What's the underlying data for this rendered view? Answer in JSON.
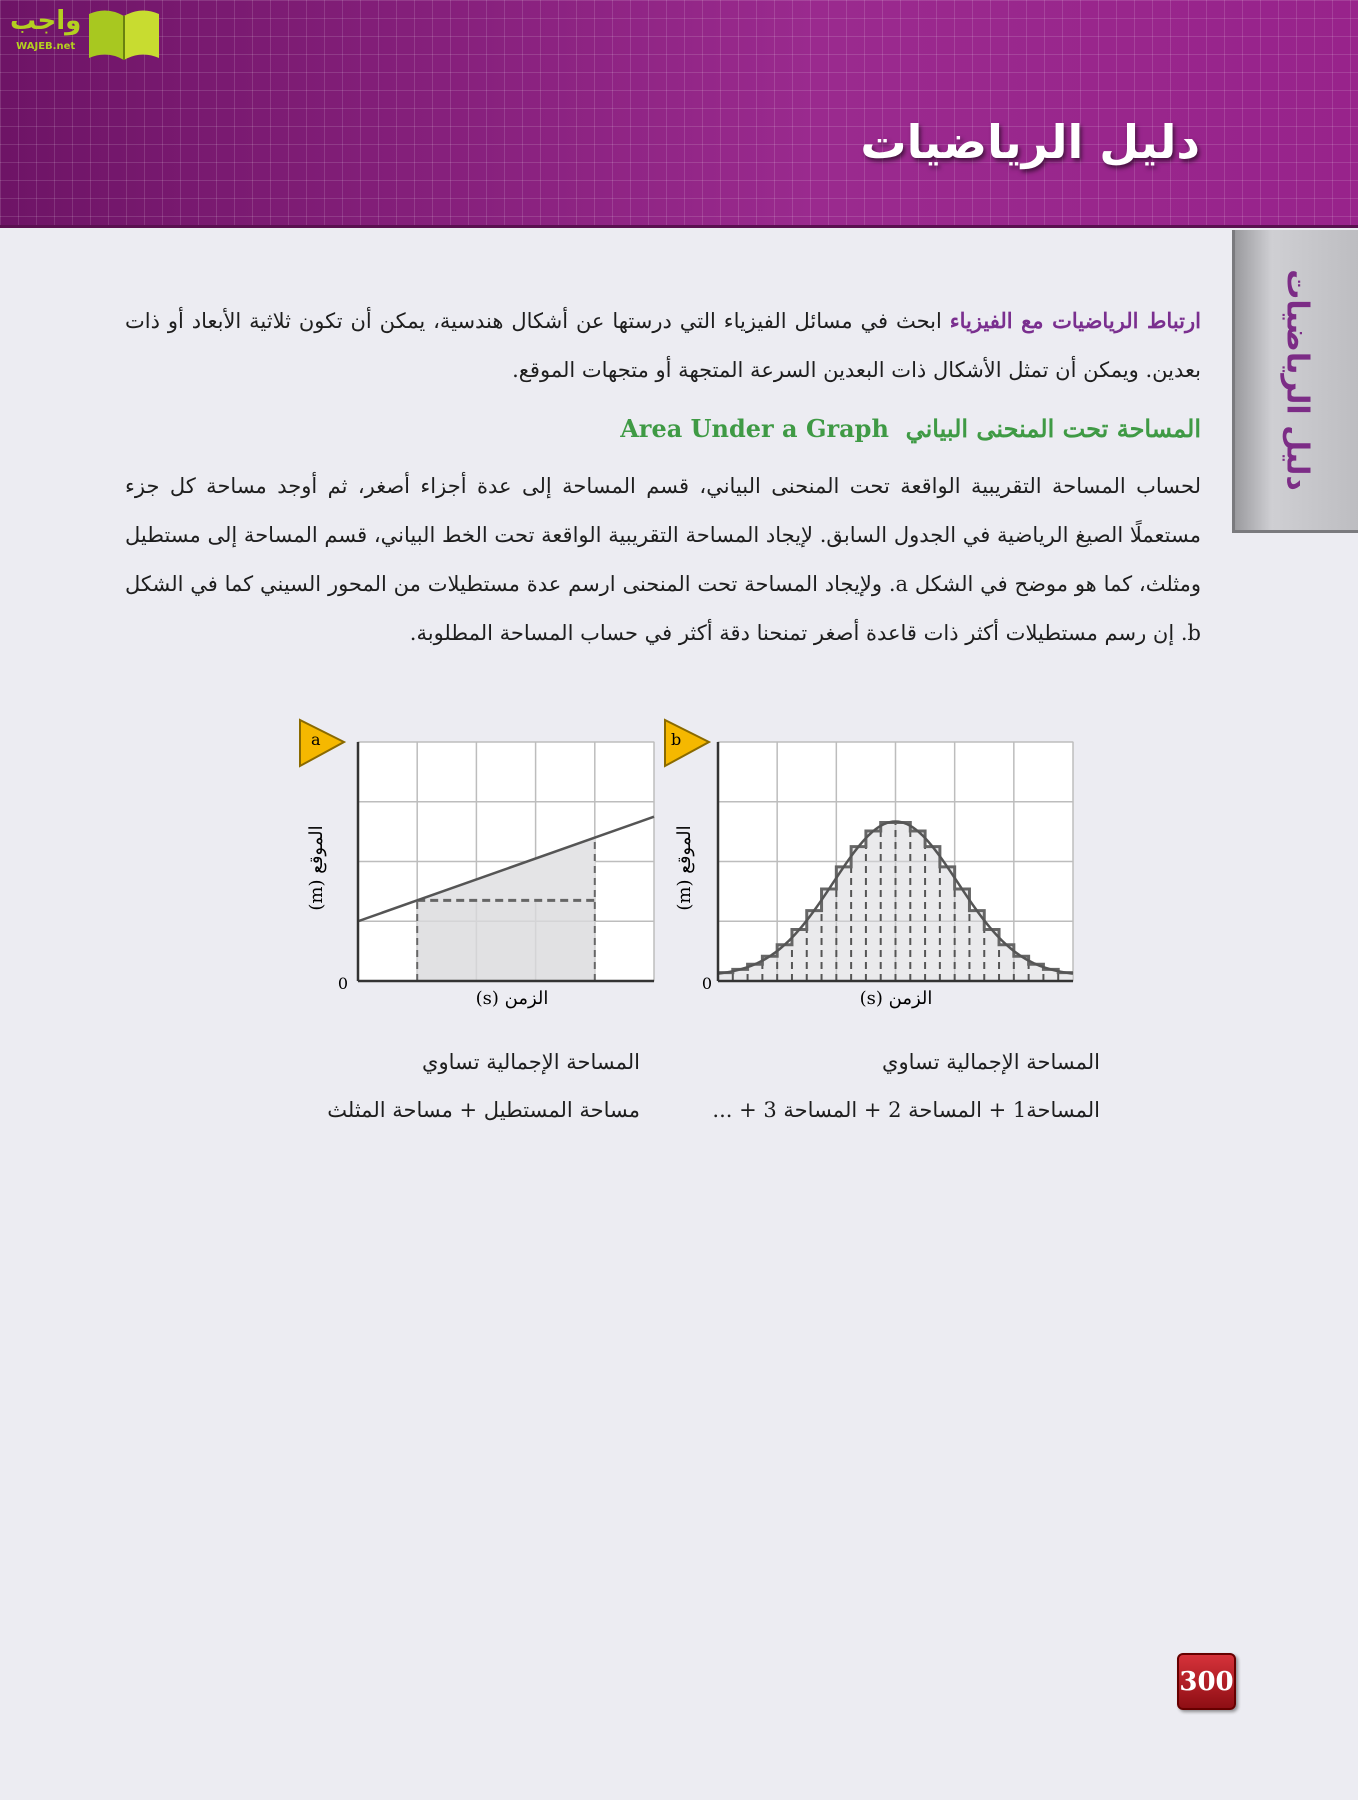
{
  "header": {
    "title": "دليل الرياضيات",
    "logo_text": "واجب",
    "logo_sub": "WAJEB.net",
    "background_color": "#8d1d80"
  },
  "side_tab": {
    "label": "دليل الرياضيات"
  },
  "intro": {
    "lead": "ارتباط الرياضيات مع الفيزياء",
    "text": " ابحث في مسائل الفيزياء التي درستها عن أشكال هندسية، يمكن أن تكون ثلاثية الأبعاد أو ذات بعدين. ويمكن أن تمثل الأشكال ذات البعدين السرعة المتجهة أو متجهات الموقع."
  },
  "section": {
    "heading_ar": "المساحة تحت المنحنى البياني",
    "heading_en": "Area Under a Graph",
    "body": "لحساب المساحة التقريبية الواقعة تحت المنحنى البياني، قسم المساحة إلى عدة أجزاء أصغر، ثم أوجد مساحة كل جزء مستعملًا الصيغ الرياضية في الجدول السابق. لإيجاد المساحة التقريبية الواقعة تحت الخط البياني، قسم المساحة إلى مستطيل ومثلث، كما هو موضح في الشكل a. ولإيجاد المساحة تحت المنحنى ارسم عدة مستطيلات من المحور السيني كما في الشكل b. إن رسم مستطيلات أكثر ذات قاعدة أصغر تمنحنا دقة أكثر في حساب المساحة المطلوبة."
  },
  "figures": {
    "a": {
      "badge": "a",
      "ylabel": "الموقع (m)",
      "xlabel": "الزمن (s)",
      "origin": "0",
      "caption_line1": "المساحة الإجمالية تساوي",
      "caption_line2": "مساحة المستطيل + مساحة المثلث"
    },
    "b": {
      "badge": "b",
      "ylabel": "الموقع (m)",
      "xlabel": "الزمن (s)",
      "origin": "0",
      "caption_line1": "المساحة الإجمالية تساوي",
      "caption_line2": "المساحة1 + المساحة 2 + المساحة 3 + ..."
    }
  },
  "chart_data": [
    {
      "type": "line",
      "name_ref": "a",
      "xlim": [
        0,
        5
      ],
      "ylim": [
        0,
        4
      ],
      "grid": true,
      "line": {
        "x": [
          0,
          5
        ],
        "y": [
          1,
          2.75
        ]
      },
      "rectangle": {
        "x": [
          1,
          4
        ],
        "height": 1.35
      },
      "colors": {
        "line": "#555555",
        "fill": "#d9d9dc",
        "badge": "#f5b800"
      }
    },
    {
      "type": "area",
      "name_ref": "b",
      "xlim": [
        0,
        6
      ],
      "ylim": [
        0,
        4
      ],
      "grid": true,
      "curve": {
        "shape": "bell",
        "peak_x": 3,
        "peak_y": 2.67,
        "baseline_y": 0.08
      },
      "rectangle_width": 0.25,
      "colors": {
        "line": "#555555",
        "fill": "#d9d9dc",
        "badge": "#f5b800"
      }
    }
  ],
  "page": {
    "number": "300"
  }
}
